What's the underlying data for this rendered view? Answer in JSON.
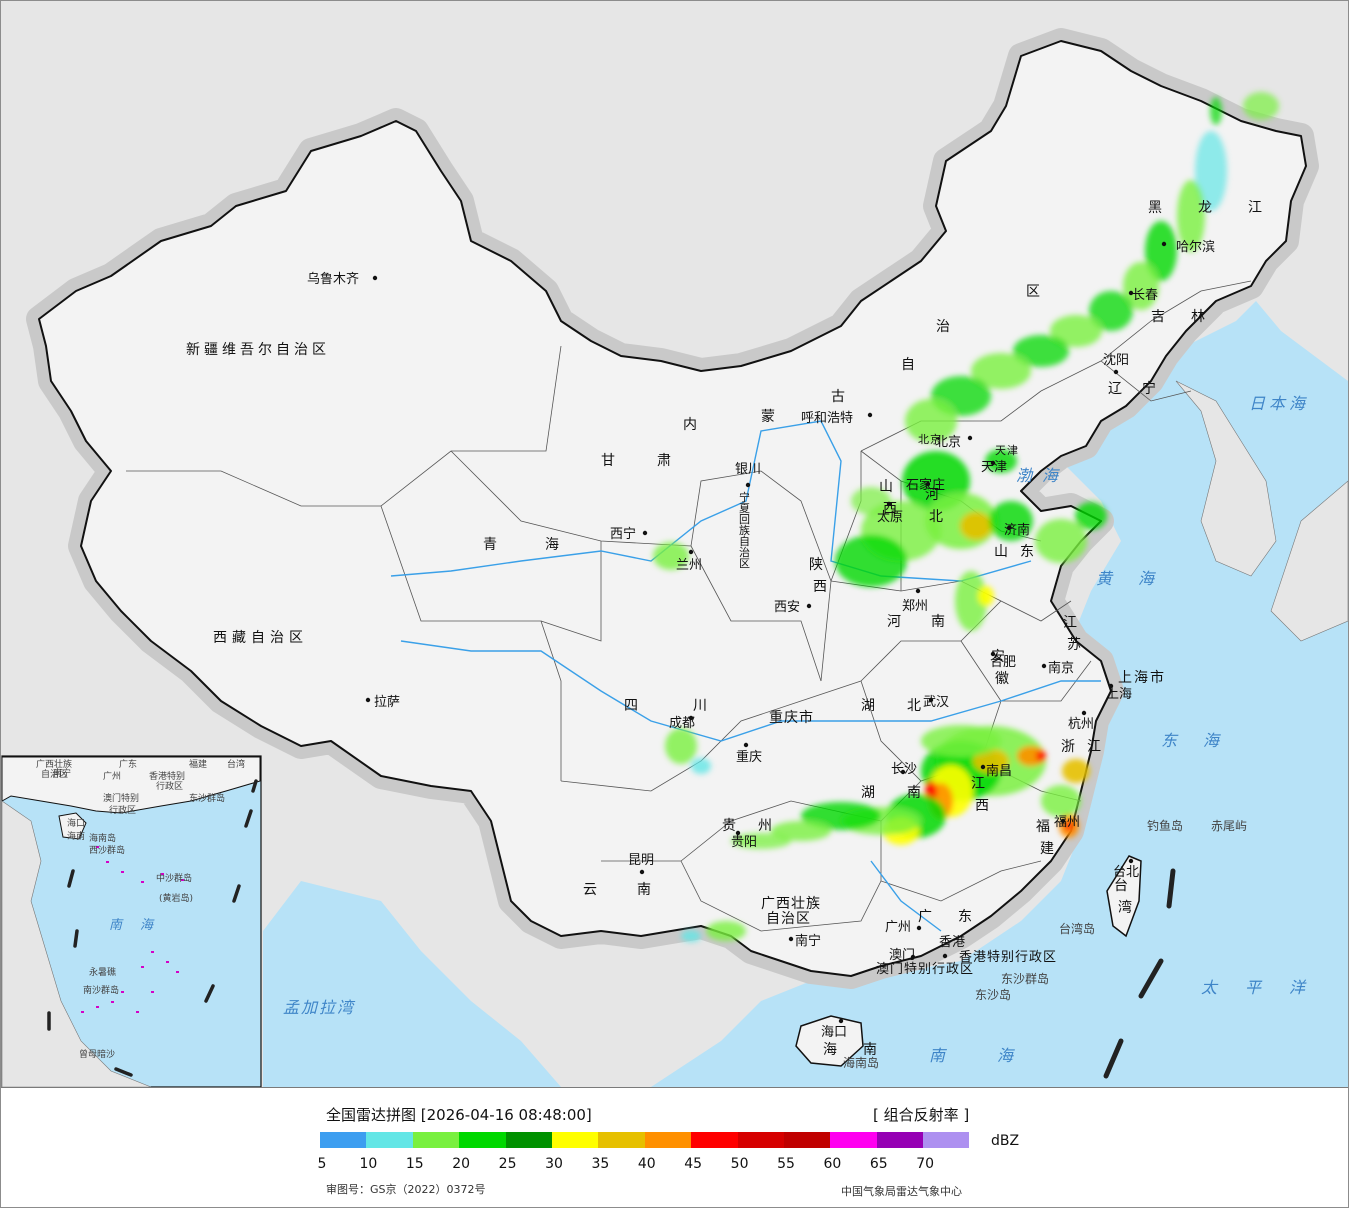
{
  "colors": {
    "land": "#f3f3f3",
    "sea": "#b7e2f7",
    "foreign": "#e6e6e6",
    "border": "#111111",
    "halo": "#c9c9c9",
    "river": "#3aa0e8"
  },
  "map": {
    "capitals": [
      {
        "name": "乌鲁木齐"
      },
      {
        "name": "拉萨"
      },
      {
        "name": "西宁"
      },
      {
        "name": "兰州"
      },
      {
        "name": "银川"
      },
      {
        "name": "呼和浩特"
      },
      {
        "name": "北京"
      },
      {
        "name": "天津"
      },
      {
        "name": "石家庄"
      },
      {
        "name": "太原"
      },
      {
        "name": "济南"
      },
      {
        "name": "郑州"
      },
      {
        "name": "西安"
      },
      {
        "name": "成都"
      },
      {
        "name": "重庆"
      },
      {
        "name": "贵阳"
      },
      {
        "name": "昆明"
      },
      {
        "name": "南宁"
      },
      {
        "name": "广州"
      },
      {
        "name": "香港"
      },
      {
        "name": "澳门"
      },
      {
        "name": "海口"
      },
      {
        "name": "长沙"
      },
      {
        "name": "武汉"
      },
      {
        "name": "南昌"
      },
      {
        "name": "福州"
      },
      {
        "name": "台北"
      },
      {
        "name": "杭州"
      },
      {
        "name": "上海"
      },
      {
        "name": "南京"
      },
      {
        "name": "合肥"
      },
      {
        "name": "沈阳"
      },
      {
        "name": "长春"
      },
      {
        "name": "哈尔滨"
      }
    ],
    "regions": [
      {
        "name": "新疆维吾尔自治区"
      },
      {
        "name": "西藏自治区"
      },
      {
        "name": "青海"
      },
      {
        "name": "甘肃"
      },
      {
        "name": "四川"
      },
      {
        "name": "云南"
      },
      {
        "name": "贵州"
      },
      {
        "name": "广西壮族"
      },
      {
        "name": "自治区"
      },
      {
        "name": "广东"
      },
      {
        "name": "海南"
      },
      {
        "name": "湖南"
      },
      {
        "name": "湖北"
      },
      {
        "name": "江西"
      },
      {
        "name": "福建"
      },
      {
        "name": "台湾"
      },
      {
        "name": "浙江"
      },
      {
        "name": "安徽"
      },
      {
        "name": "江苏"
      },
      {
        "name": "上海市"
      },
      {
        "name": "山东"
      },
      {
        "name": "河南"
      },
      {
        "name": "河北"
      },
      {
        "name": "山西"
      },
      {
        "name": "陕西"
      },
      {
        "name": "宁夏回族自治区"
      },
      {
        "name": "内蒙古自治区"
      },
      {
        "name": "辽宁"
      },
      {
        "name": "吉林"
      },
      {
        "name": "黑龙江"
      },
      {
        "name": "北京"
      },
      {
        "name": "天津"
      },
      {
        "name": "重庆市"
      },
      {
        "name": "香港特别行政区"
      },
      {
        "name": "澳门特别行政区"
      }
    ],
    "seas": [
      {
        "name": "日本海"
      },
      {
        "name": "渤海"
      },
      {
        "name": "黄海"
      },
      {
        "name": "东海"
      },
      {
        "name": "南海"
      },
      {
        "name": "太平洋"
      },
      {
        "name": "孟加拉湾"
      }
    ],
    "islands": [
      {
        "name": "钓鱼岛"
      },
      {
        "name": "赤尾屿"
      },
      {
        "name": "台湾岛"
      },
      {
        "name": "海南岛"
      },
      {
        "name": "东沙群岛"
      },
      {
        "name": "东沙岛"
      }
    ],
    "inset": {
      "labels": [
        {
          "name": "广西壮族"
        },
        {
          "name": "自治区"
        },
        {
          "name": "广东"
        },
        {
          "name": "福建"
        },
        {
          "name": "台湾"
        },
        {
          "name": "南宁"
        },
        {
          "name": "广州"
        },
        {
          "name": "香港特别"
        },
        {
          "name": "行政区"
        },
        {
          "name": "澳门特别"
        },
        {
          "name": "行政区"
        },
        {
          "name": "海口"
        },
        {
          "name": "海南"
        },
        {
          "name": "海南岛"
        },
        {
          "name": "西沙群岛"
        },
        {
          "name": "东沙群岛"
        },
        {
          "name": "中沙群岛"
        },
        {
          "name": "(黄岩岛)"
        },
        {
          "name": "南海"
        },
        {
          "name": "南沙群岛"
        },
        {
          "name": "永暑礁"
        },
        {
          "name": "曾母暗沙"
        }
      ]
    }
  },
  "legend": {
    "title": "全国雷达拼图 [2026-04-16 08:48:00]",
    "product": "[ 组合反射率 ]",
    "unit": "dBZ",
    "colors": [
      "#3d9ef0",
      "#63e6e6",
      "#79f040",
      "#00d800",
      "#009100",
      "#ffff00",
      "#e6c000",
      "#ff9000",
      "#ff0000",
      "#d60000",
      "#c00000",
      "#ff00f0",
      "#9600b4",
      "#ad90f0"
    ],
    "ticks": [
      "5",
      "10",
      "15",
      "20",
      "25",
      "30",
      "35",
      "40",
      "45",
      "50",
      "55",
      "60",
      "65",
      "70"
    ],
    "approval": "审图号：GS京（2022）0372号",
    "credit": "中国气象局雷达气象中心"
  }
}
